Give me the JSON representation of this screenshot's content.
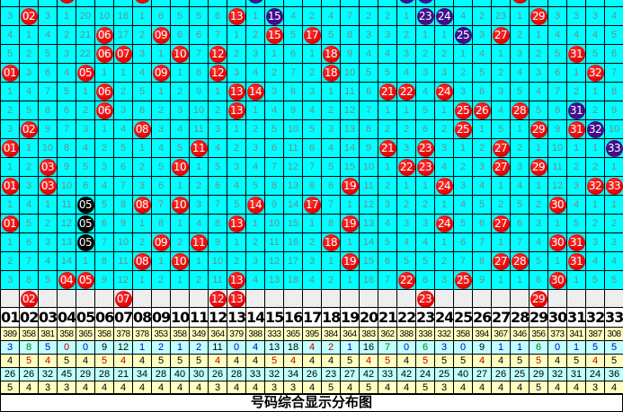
{
  "colors": {
    "red": "#e00000",
    "blue": "#40108a",
    "black": "#000000",
    "grid_bg": "#00ffff",
    "cell_text": "#6e8c8c",
    "stat_yellow": "#ffffc0",
    "stat_cyan": "#c0ffff"
  },
  "grid": {
    "top_partial_marks": [
      [
        4,
        "red"
      ],
      [
        8,
        "red"
      ],
      [
        14,
        "blue"
      ],
      [
        22,
        "blue"
      ],
      [
        23,
        "blue"
      ],
      [
        28,
        "red"
      ]
    ],
    "rows": [
      {
        "cells": [
          "3",
          "02",
          "3",
          "1",
          "20",
          "10",
          "16",
          "1",
          "6",
          "5",
          "5",
          "6",
          "13",
          "1",
          "15",
          "4",
          "2",
          "4",
          "7",
          "2",
          "2",
          "1",
          "23",
          "24",
          "4",
          "2",
          "23",
          "1",
          "29",
          "3",
          "3",
          "3",
          "4"
        ],
        "marks": {
          "2": "red",
          "13": "red",
          "15": "blue",
          "23": "blue",
          "24": "blue",
          "29": "red"
        }
      },
      {
        "cells": [
          "4",
          "1",
          "4",
          "2",
          "21",
          "06",
          "17",
          "2",
          "09",
          "6",
          "6",
          "7",
          "1",
          "2",
          "15",
          "5",
          "17",
          "5",
          "8",
          "3",
          "3",
          "2",
          "1",
          "1",
          "25",
          "3",
          "27",
          "2",
          "1",
          "4",
          "4",
          "4",
          "5"
        ],
        "marks": {
          "6": "red",
          "9": "red",
          "15": "red",
          "17": "red",
          "25": "blue",
          "27": "red"
        }
      },
      {
        "cells": [
          "5",
          "2",
          "5",
          "3",
          "22",
          "06",
          "07",
          "3",
          "1",
          "10",
          "7",
          "12",
          "2",
          "3",
          "1",
          "6",
          "1",
          "18",
          "9",
          "4",
          "4",
          "3",
          "2",
          "2",
          "1",
          "4",
          "1",
          "3",
          "2",
          "5",
          "31",
          "5",
          "6"
        ],
        "marks": {
          "6": "red",
          "7": "red",
          "10": "red",
          "12": "red",
          "18": "red",
          "31": "red"
        }
      },
      {
        "cells": [
          "01",
          "3",
          "6",
          "4",
          "05",
          "1",
          "1",
          "4",
          "09",
          "1",
          "8",
          "12",
          "3",
          "4",
          "2",
          "7",
          "2",
          "18",
          "10",
          "5",
          "5",
          "4",
          "3",
          "3",
          "2",
          "5",
          "2",
          "4",
          "3",
          "6",
          "1",
          "32",
          "7"
        ],
        "marks": {
          "1": "red",
          "5": "red",
          "9": "red",
          "12": "red",
          "18": "red",
          "32": "red"
        }
      },
      {
        "cells": [
          "1",
          "4",
          "7",
          "5",
          "1",
          "06",
          "2",
          "5",
          "1",
          "2",
          "9",
          "1",
          "13",
          "14",
          "3",
          "8",
          "3",
          "1",
          "11",
          "6",
          "21",
          "22",
          "4",
          "24",
          "3",
          "6",
          "3",
          "5",
          "4",
          "7",
          "2",
          "1",
          "8"
        ],
        "marks": {
          "6": "red",
          "13": "red",
          "14": "red",
          "21": "red",
          "22": "red",
          "24": "red"
        }
      },
      {
        "cells": [
          "2",
          "5",
          "8",
          "6",
          "2",
          "06",
          "3",
          "6",
          "2",
          "3",
          "10",
          "2",
          "13",
          "1",
          "4",
          "9",
          "4",
          "2",
          "12",
          "7",
          "1",
          "1",
          "5",
          "1",
          "25",
          "26",
          "4",
          "28",
          "5",
          "8",
          "31",
          "2",
          "9"
        ],
        "marks": {
          "6": "red",
          "13": "red",
          "25": "red",
          "26": "red",
          "28": "red",
          "31": "blue"
        }
      },
      {
        "cells": [
          "3",
          "02",
          "9",
          "7",
          "3",
          "1",
          "4",
          "08",
          "3",
          "4",
          "11",
          "3",
          "1",
          "2",
          "5",
          "10",
          "5",
          "3",
          "13",
          "8",
          "2",
          "2",
          "6",
          "2",
          "25",
          "1",
          "5",
          "1",
          "29",
          "9",
          "31",
          "32",
          "10"
        ],
        "marks": {
          "2": "red",
          "8": "red",
          "25": "red",
          "29": "red",
          "31": "red",
          "32": "blue"
        }
      },
      {
        "cells": [
          "01",
          "1",
          "10",
          "8",
          "4",
          "2",
          "5",
          "1",
          "4",
          "5",
          "11",
          "4",
          "2",
          "3",
          "6",
          "11",
          "6",
          "4",
          "14",
          "9",
          "21",
          "3",
          "23",
          "3",
          "1",
          "2",
          "27",
          "2",
          "1",
          "10",
          "1",
          "1",
          "33"
        ],
        "marks": {
          "1": "red",
          "11": "red",
          "21": "red",
          "23": "red",
          "27": "red",
          "33": "blue"
        }
      },
      {
        "cells": [
          "1",
          "2",
          "03",
          "9",
          "5",
          "3",
          "6",
          "2",
          "5",
          "10",
          "1",
          "5",
          "3",
          "4",
          "7",
          "12",
          "7",
          "5",
          "15",
          "10",
          "1",
          "22",
          "23",
          "4",
          "2",
          "3",
          "27",
          "3",
          "29",
          "11",
          "2",
          "2",
          "1"
        ],
        "marks": {
          "3": "red",
          "10": "red",
          "22": "red",
          "23": "red",
          "27": "red",
          "29": "red"
        }
      },
      {
        "cells": [
          "01",
          "3",
          "03",
          "10",
          "6",
          "4",
          "7",
          "3",
          "6",
          "1",
          "2",
          "6",
          "4",
          "5",
          "8",
          "13",
          "8",
          "6",
          "19",
          "11",
          "2",
          "1",
          "1",
          "24",
          "3",
          "4",
          "1",
          "4",
          "1",
          "12",
          "3",
          "32",
          "33"
        ],
        "marks": {
          "1": "red",
          "3": "red",
          "19": "red",
          "24": "red",
          "32": "red",
          "33": "red"
        }
      },
      {
        "cells": [
          "1",
          "4",
          "1",
          "11",
          "05",
          "5",
          "8",
          "08",
          "7",
          "10",
          "3",
          "7",
          "5",
          "14",
          "9",
          "14",
          "17",
          "7",
          "1",
          "12",
          "3",
          "2",
          "2",
          "1",
          "4",
          "5",
          "2",
          "5",
          "2",
          "30",
          "4",
          "1",
          "1"
        ],
        "marks": {
          "5": "black",
          "8": "red",
          "10": "red",
          "14": "red",
          "17": "red",
          "30": "red"
        }
      },
      {
        "cells": [
          "01",
          "5",
          "2",
          "12",
          "05",
          "6",
          "9",
          "1",
          "8",
          "1",
          "4",
          "8",
          "13",
          "1",
          "10",
          "15",
          "1",
          "8",
          "19",
          "13",
          "4",
          "3",
          "3",
          "24",
          "5",
          "6",
          "27",
          "6",
          "3",
          "1",
          "5",
          "2",
          "2"
        ],
        "marks": {
          "1": "red",
          "5": "black",
          "13": "red",
          "19": "red",
          "24": "red",
          "27": "red"
        }
      },
      {
        "cells": [
          "1",
          "6",
          "3",
          "13",
          "05",
          "7",
          "10",
          "2",
          "09",
          "2",
          "11",
          "9",
          "1",
          "2",
          "11",
          "16",
          "2",
          "18",
          "1",
          "14",
          "5",
          "4",
          "4",
          "1",
          "6",
          "7",
          "1",
          "7",
          "4",
          "30",
          "31",
          "3",
          "3"
        ],
        "marks": {
          "5": "black",
          "9": "red",
          "11": "red",
          "18": "red",
          "30": "red",
          "31": "red"
        }
      },
      {
        "cells": [
          "2",
          "7",
          "4",
          "14",
          "1",
          "8",
          "11",
          "08",
          "1",
          "10",
          "1",
          "10",
          "2",
          "3",
          "12",
          "17",
          "3",
          "1",
          "19",
          "15",
          "6",
          "5",
          "5",
          "2",
          "7",
          "8",
          "27",
          "28",
          "5",
          "1",
          "31",
          "4",
          "4"
        ],
        "marks": {
          "8": "red",
          "10": "red",
          "19": "red",
          "27": "red",
          "28": "red",
          "31": "red"
        }
      },
      {
        "cells": [
          "3",
          "8",
          "5",
          "04",
          "05",
          "9",
          "12",
          "1",
          "2",
          "1",
          "2",
          "11",
          "13",
          "4",
          "13",
          "18",
          "4",
          "2",
          "1",
          "16",
          "7",
          "22",
          "6",
          "3",
          "25",
          "9",
          "1",
          "1",
          "6",
          "30",
          "1",
          "5",
          "5"
        ],
        "marks": {
          "4": "red",
          "5": "red",
          "13": "red",
          "22": "red",
          "25": "red",
          "30": "red"
        }
      }
    ],
    "predicted": {
      "2": "02",
      "7": "07",
      "12": "12",
      "13": "13",
      "23": "23",
      "29": "29"
    }
  },
  "header": [
    "01",
    "02",
    "03",
    "04",
    "05",
    "06",
    "07",
    "08",
    "09",
    "10",
    "11",
    "12",
    "13",
    "14",
    "15",
    "16",
    "17",
    "18",
    "19",
    "20",
    "21",
    "22",
    "23",
    "24",
    "25",
    "26",
    "27",
    "28",
    "29",
    "30",
    "31",
    "32",
    "33"
  ],
  "stats": [
    {
      "style": "y small",
      "values": [
        "389",
        "358",
        "381",
        "358",
        "365",
        "358",
        "378",
        "378",
        "353",
        "358",
        "349",
        "364",
        "379",
        "388",
        "333",
        "365",
        "395",
        "384",
        "364",
        "383",
        "362",
        "388",
        "338",
        "332",
        "358",
        "394",
        "367",
        "346",
        "356",
        "373",
        "341",
        "387",
        "308"
      ]
    },
    {
      "style": "c",
      "values": [
        "3",
        "8",
        "5",
        "0",
        "0",
        "9",
        "12",
        "1",
        "2",
        "1",
        "2",
        "11",
        "0",
        "4",
        "13",
        "18",
        "4",
        "2",
        "1",
        "16",
        "7",
        "0",
        "6",
        "3",
        "0",
        "9",
        "1",
        "1",
        "6",
        "0",
        "1",
        "5",
        "5"
      ],
      "colors": [
        "#0000c0",
        "#008000",
        "#0000c0",
        "#c00000",
        "#0000c0",
        "#000000",
        "#000000",
        "#0000c0",
        "#0000c0",
        "#0000c0",
        "#0000c0",
        "#000000",
        "#0000c0",
        "#0000c0",
        "#000000",
        "#000000",
        "#c00000",
        "#c00000",
        "#0000c0",
        "#000000",
        "#008000",
        "#0000c0",
        "#008000",
        "#0000c0",
        "#0000c0",
        "#000000",
        "#0000c0",
        "#0000c0",
        "#008000",
        "#0000c0",
        "#0000c0",
        "#0000c0",
        "#0000c0"
      ]
    },
    {
      "style": "y",
      "values": [
        "4",
        "5",
        "4",
        "5",
        "4",
        "5",
        "4",
        "4",
        "5",
        "5",
        "5",
        "4",
        "4",
        "4",
        "5",
        "4",
        "4",
        "4",
        "5",
        "4",
        "5",
        "4",
        "5",
        "5",
        "5",
        "4",
        "4",
        "5",
        "5",
        "4",
        "5",
        "4",
        "5"
      ],
      "colors": [
        "#000000",
        "#c00000",
        "#c00000",
        "#000000",
        "#000000",
        "#c00000",
        "#c00000",
        "#000000",
        "#000000",
        "#000000",
        "#000000",
        "#c00000",
        "#000000",
        "#000000",
        "#c00000",
        "#c00000",
        "#000000",
        "#000000",
        "#000000",
        "#c00000",
        "#c00000",
        "#000000",
        "#c00000",
        "#000000",
        "#000000",
        "#c00000",
        "#000000",
        "#000000",
        "#c00000",
        "#000000",
        "#000000",
        "#c00000",
        "#000000"
      ]
    },
    {
      "style": "c",
      "values": [
        "26",
        "26",
        "32",
        "45",
        "29",
        "28",
        "21",
        "34",
        "28",
        "40",
        "30",
        "26",
        "28",
        "33",
        "32",
        "34",
        "26",
        "23",
        "27",
        "42",
        "33",
        "42",
        "24",
        "25",
        "40",
        "27",
        "26",
        "25",
        "29",
        "32",
        "31",
        "24",
        "36"
      ]
    },
    {
      "style": "y",
      "values": [
        "5",
        "4",
        "3",
        "3",
        "4",
        "4",
        "4",
        "4",
        "4",
        "4",
        "4",
        "3",
        "4",
        "4",
        "3",
        "3",
        "4",
        "5",
        "4",
        "5",
        "4",
        "4",
        "5",
        "3",
        "4",
        "4",
        "4",
        "4",
        "5",
        "4",
        "4",
        "3",
        "4"
      ]
    }
  ],
  "title": "号码综合显示分布图"
}
